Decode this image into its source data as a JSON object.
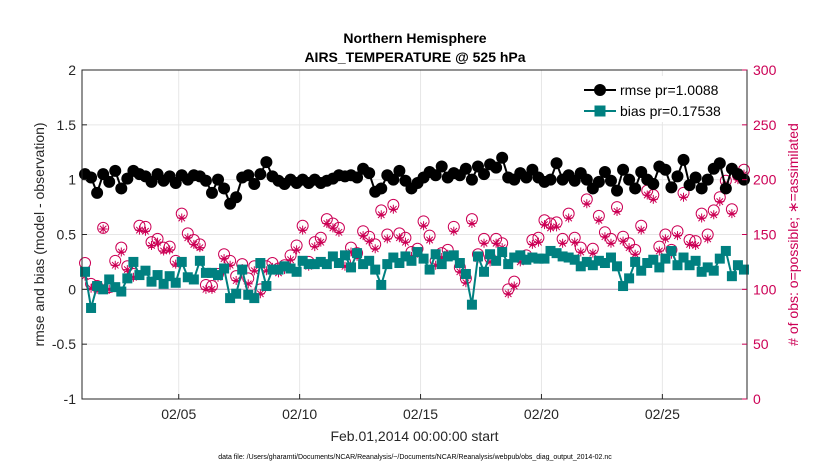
{
  "colors": {
    "rmse": "#000000",
    "bias": "#008080",
    "obs": "#cc0055",
    "grid": "#e6e6e6",
    "zero": "#c0a8c0"
  },
  "chart_data": {
    "type": "line",
    "title": "Northern Hemisphere",
    "subtitle": "AIRS_TEMPERATURE @ 525 hPa",
    "xlabel": "Feb.01,2014 00:00:00 start",
    "ylabel": "rmse and bias (model - observation)",
    "y2label": "# of obs: o=possible; ∗=assimilated",
    "footnote": "data file: /Users/gharamti/Documents/NCAR/Reanalysis/~/Documents/NCAR/Reanalysis/webpub/obs_diag_output_2014-02.nc",
    "xlim": [
      1,
      28.5
    ],
    "ylim": [
      -1,
      2
    ],
    "y2lim": [
      0,
      300
    ],
    "xticks": [
      {
        "v": 5,
        "label": "02/05"
      },
      {
        "v": 10,
        "label": "02/10"
      },
      {
        "v": 15,
        "label": "02/15"
      },
      {
        "v": 20,
        "label": "02/20"
      },
      {
        "v": 25,
        "label": "02/25"
      }
    ],
    "yticks": [
      {
        "v": -1,
        "label": "-1"
      },
      {
        "v": -0.5,
        "label": "-0.5"
      },
      {
        "v": 0,
        "label": "0"
      },
      {
        "v": 0.5,
        "label": "0.5"
      },
      {
        "v": 1,
        "label": "1"
      },
      {
        "v": 1.5,
        "label": "1.5"
      },
      {
        "v": 2,
        "label": "2"
      }
    ],
    "y2ticks": [
      {
        "v": 0,
        "label": "0"
      },
      {
        "v": 50,
        "label": "50"
      },
      {
        "v": 100,
        "label": "100"
      },
      {
        "v": 150,
        "label": "150"
      },
      {
        "v": 200,
        "label": "200"
      },
      {
        "v": 250,
        "label": "250"
      },
      {
        "v": 300,
        "label": "300"
      }
    ],
    "grid": true,
    "legend_position": "top-right",
    "x": [
      1.125,
      1.375,
      1.625,
      1.875,
      2.125,
      2.375,
      2.625,
      2.875,
      3.125,
      3.375,
      3.625,
      3.875,
      4.125,
      4.375,
      4.625,
      4.875,
      5.125,
      5.375,
      5.625,
      5.875,
      6.125,
      6.375,
      6.625,
      6.875,
      7.125,
      7.375,
      7.625,
      7.875,
      8.125,
      8.375,
      8.625,
      8.875,
      9.125,
      9.375,
      9.625,
      9.875,
      10.125,
      10.375,
      10.625,
      10.875,
      11.125,
      11.375,
      11.625,
      11.875,
      12.125,
      12.375,
      12.625,
      12.875,
      13.125,
      13.375,
      13.625,
      13.875,
      14.125,
      14.375,
      14.625,
      14.875,
      15.125,
      15.375,
      15.625,
      15.875,
      16.125,
      16.375,
      16.625,
      16.875,
      17.125,
      17.375,
      17.625,
      17.875,
      18.125,
      18.375,
      18.625,
      18.875,
      19.125,
      19.375,
      19.625,
      19.875,
      20.125,
      20.375,
      20.625,
      20.875,
      21.125,
      21.375,
      21.625,
      21.875,
      22.125,
      22.375,
      22.625,
      22.875,
      23.125,
      23.375,
      23.625,
      23.875,
      24.125,
      24.375,
      24.625,
      24.875,
      25.125,
      25.375,
      25.625,
      25.875,
      26.125,
      26.375,
      26.625,
      26.875,
      27.125,
      27.375,
      27.625,
      27.875,
      28.125,
      28.375
    ],
    "series": [
      {
        "name": "rmse pr=1.0088",
        "axis": "left",
        "values": [
          1.05,
          1.02,
          0.88,
          1.05,
          0.98,
          1.08,
          0.92,
          1.01,
          1.08,
          1.05,
          1.03,
          0.98,
          1.05,
          0.99,
          1.03,
          0.97,
          1.04,
          1.0,
          1.04,
          1.03,
          0.99,
          0.88,
          1.0,
          0.92,
          0.78,
          0.84,
          1.02,
          1.04,
          0.96,
          1.05,
          1.16,
          1.03,
          0.99,
          0.96,
          1.0,
          0.97,
          1.0,
          0.97,
          1.0,
          0.97,
          0.99,
          1.01,
          1.04,
          1.03,
          1.04,
          1.02,
          1.1,
          1.06,
          0.89,
          0.92,
          1.04,
          1.0,
          1.08,
          0.99,
          0.92,
          0.97,
          1.02,
          1.07,
          1.04,
          1.12,
          1.02,
          1.06,
          1.04,
          1.1,
          1.0,
          1.12,
          1.05,
          1.14,
          1.11,
          1.2,
          1.02,
          1.0,
          1.06,
          1.02,
          1.09,
          1.02,
          0.98,
          1.0,
          1.15,
          1.0,
          1.04,
          0.99,
          1.06,
          1.0,
          0.92,
          0.98,
          1.07,
          0.99,
          0.9,
          1.09,
          1.0,
          0.92,
          1.07,
          1.0,
          0.96,
          1.12,
          1.09,
          0.93,
          1.03,
          1.18,
          0.95,
          1.02,
          0.92,
          1.0,
          1.1,
          1.15,
          0.92,
          1.1,
          1.05,
          1.0
        ]
      },
      {
        "name": "bias pr=0.17538",
        "axis": "left",
        "values": [
          0.16,
          -0.17,
          0.03,
          0.0,
          0.09,
          0.02,
          -0.02,
          0.1,
          0.25,
          0.13,
          0.17,
          0.07,
          0.13,
          0.05,
          0.12,
          0.06,
          0.25,
          0.11,
          0.09,
          0.26,
          0.15,
          0.15,
          0.13,
          0.19,
          -0.08,
          -0.04,
          0.18,
          -0.05,
          -0.08,
          0.24,
          0.03,
          0.18,
          0.18,
          0.21,
          0.19,
          0.16,
          0.26,
          0.23,
          0.23,
          0.25,
          0.23,
          0.3,
          0.24,
          0.31,
          0.2,
          0.33,
          0.23,
          0.26,
          0.18,
          0.04,
          0.23,
          0.29,
          0.24,
          0.3,
          0.26,
          0.34,
          0.28,
          0.18,
          0.32,
          0.23,
          0.3,
          0.31,
          0.24,
          0.14,
          -0.14,
          0.3,
          0.16,
          0.32,
          0.26,
          0.34,
          0.23,
          0.29,
          0.31,
          0.27,
          0.29,
          0.28,
          0.28,
          0.35,
          0.33,
          0.3,
          0.29,
          0.27,
          0.21,
          0.25,
          0.22,
          0.26,
          0.24,
          0.29,
          0.21,
          0.03,
          0.1,
          0.25,
          0.17,
          0.24,
          0.27,
          0.2,
          0.28,
          0.35,
          0.22,
          0.29,
          0.22,
          0.26,
          0.16,
          0.2,
          0.17,
          0.28,
          0.35,
          0.12,
          0.22,
          0.18
        ]
      },
      {
        "name": "possible obs",
        "axis": "right",
        "marker": "circle",
        "values": [
          124,
          105,
          103,
          156,
          102,
          126,
          138,
          121,
          114,
          158,
          157,
          143,
          146,
          138,
          139,
          126,
          169,
          151,
          145,
          141,
          104,
          103,
          114,
          132,
          126,
          112,
          123,
          110,
          121,
          100,
          121,
          124,
          119,
          122,
          131,
          140,
          158,
          125,
          143,
          147,
          164,
          160,
          156,
          125,
          138,
          133,
          153,
          148,
          141,
          172,
          150,
          177,
          151,
          147,
          134,
          137,
          162,
          149,
          126,
          133,
          136,
          157,
          120,
          110,
          164,
          132,
          146,
          129,
          146,
          142,
          100,
          107,
          129,
          131,
          145,
          147,
          163,
          160,
          161,
          146,
          169,
          147,
          138,
          182,
          137,
          167,
          152,
          146,
          175,
          148,
          142,
          136,
          158,
          190,
          186,
          139,
          150,
          136,
          153,
          188,
          145,
          144,
          169,
          150,
          172,
          184,
          199,
          173,
          204,
          209
        ]
      },
      {
        "name": "assimilated obs",
        "axis": "right",
        "marker": "asterisk",
        "values": [
          112,
          101,
          100,
          155,
          100,
          122,
          134,
          118,
          111,
          154,
          153,
          140,
          143,
          135,
          136,
          123,
          165,
          147,
          141,
          138,
          100,
          100,
          111,
          128,
          122,
          108,
          119,
          105,
          117,
          96,
          117,
          120,
          115,
          118,
          127,
          136,
          154,
          121,
          139,
          143,
          160,
          156,
          152,
          121,
          134,
          130,
          149,
          144,
          137,
          168,
          146,
          173,
          147,
          143,
          130,
          133,
          158,
          145,
          122,
          129,
          132,
          153,
          116,
          106,
          160,
          128,
          142,
          125,
          142,
          138,
          96,
          103,
          125,
          127,
          141,
          143,
          159,
          156,
          157,
          142,
          165,
          143,
          134,
          178,
          133,
          163,
          148,
          142,
          171,
          144,
          138,
          132,
          154,
          186,
          182,
          135,
          146,
          132,
          149,
          184,
          141,
          140,
          165,
          146,
          168,
          180,
          195,
          169,
          200,
          205
        ]
      }
    ]
  }
}
